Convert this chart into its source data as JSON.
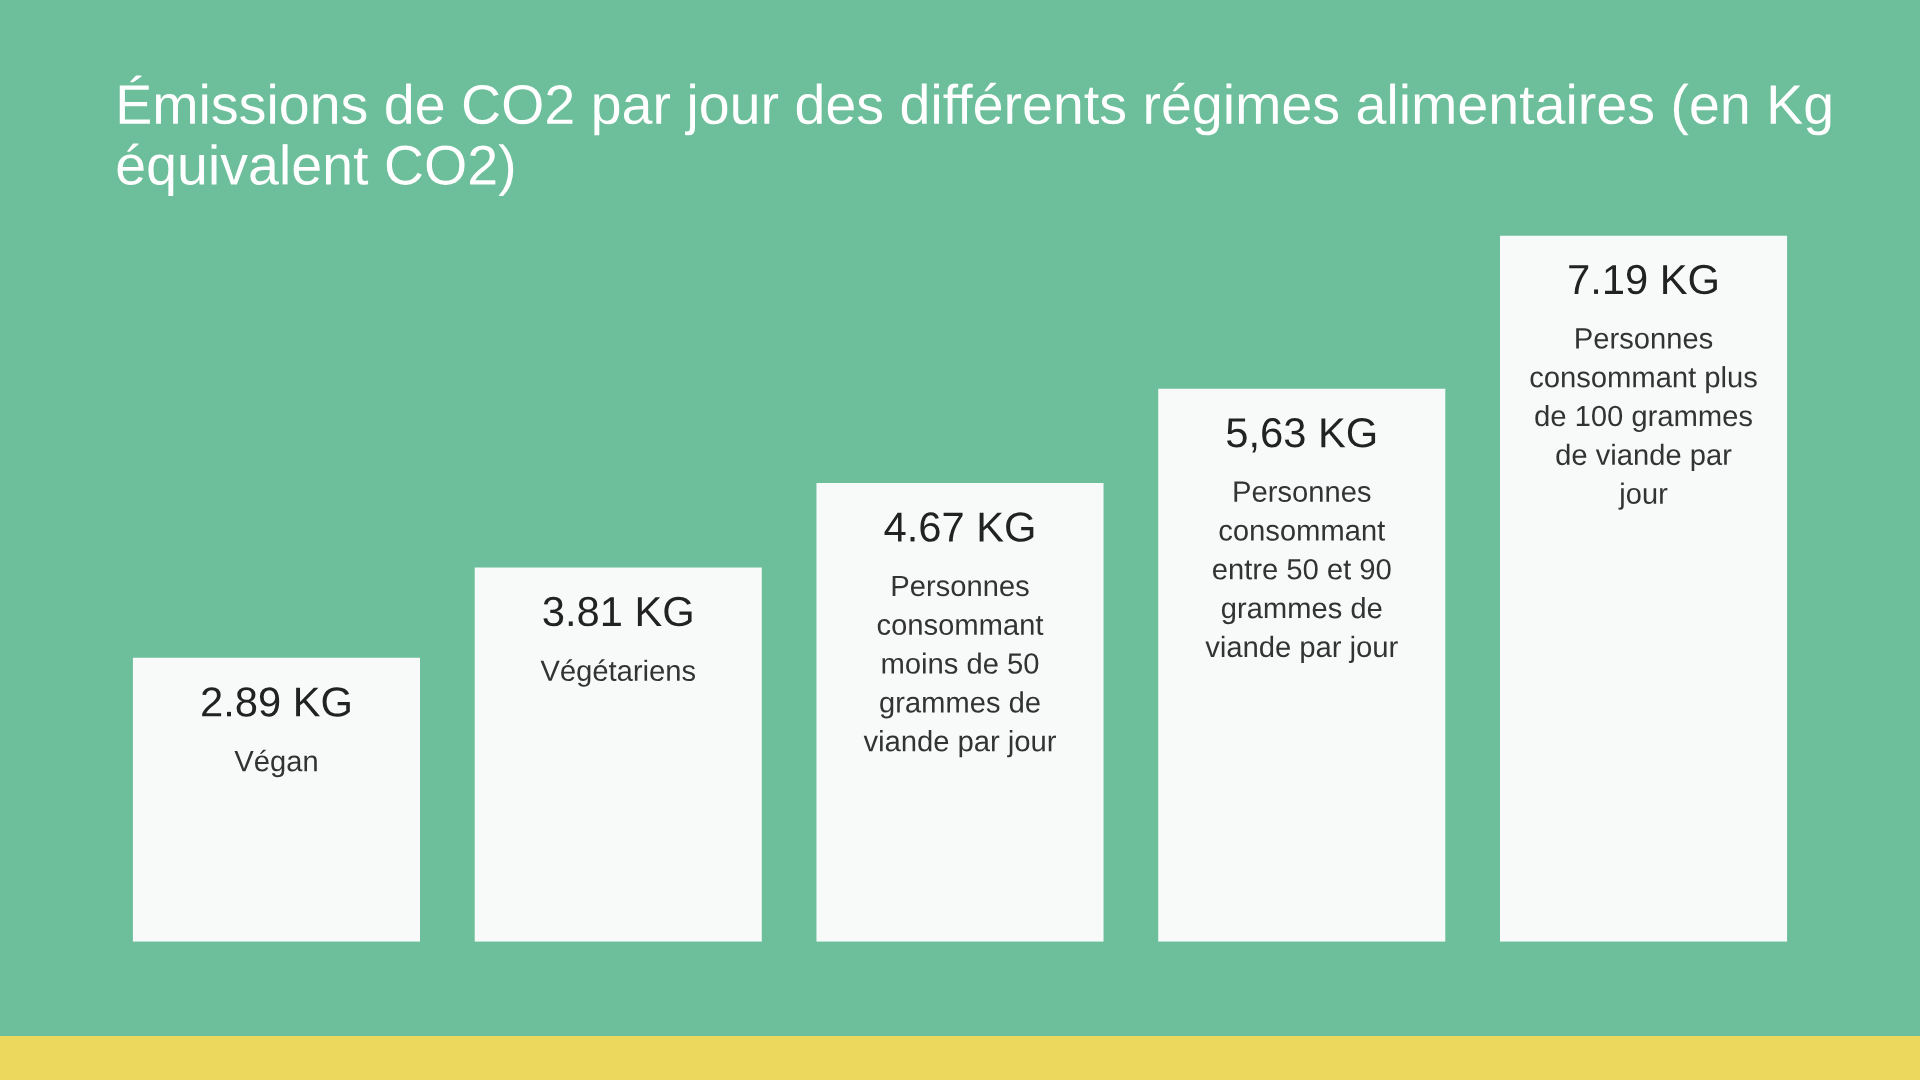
{
  "chart_data": {
    "type": "bar",
    "title": "Émissions de CO2 par jour des différents régimes alimentaires (en Kg équivalent CO2)",
    "categories": [
      "Végan",
      "Végétariens",
      "Personnes consommant moins de 50 grammes de viande par jour",
      "Personnes consommant entre 50 et 90 grammes de viande par jour",
      "Personnes consommant plus de 100 grammes de viande par jour"
    ],
    "values": [
      2.89,
      3.81,
      4.67,
      5.63,
      7.19
    ],
    "value_labels": [
      "2.89 KG",
      "3.81 KG",
      "4.67 KG",
      "5,63 KG",
      "7.19 KG"
    ],
    "color": "#f8fafa",
    "grid": false,
    "legend": false,
    "tick_labels": false
  }
}
